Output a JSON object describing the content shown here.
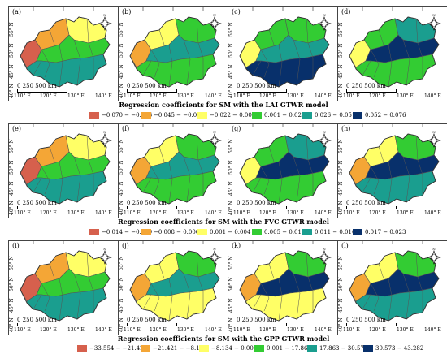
{
  "lon_labels": [
    "110° E",
    "120° E",
    "130° E",
    "140° E"
  ],
  "lat_labels_left": [
    "40° N",
    "45° N",
    "50° N",
    "55° N"
  ],
  "lat_labels_right": [
    "45° N",
    "50° N",
    "55° N"
  ],
  "scale_text": "0   250  500 km",
  "panels": [
    {
      "id": "a",
      "label": "(a)"
    },
    {
      "id": "b",
      "label": "(b)"
    },
    {
      "id": "c",
      "label": "(c)"
    },
    {
      "id": "d",
      "label": "(d)"
    },
    {
      "id": "e",
      "label": "(e)"
    },
    {
      "id": "f",
      "label": "(f)"
    },
    {
      "id": "g",
      "label": "(g)"
    },
    {
      "id": "h",
      "label": "(h)"
    },
    {
      "id": "i",
      "label": "(i)"
    },
    {
      "id": "j",
      "label": "(j)"
    },
    {
      "id": "k",
      "label": "(k)"
    },
    {
      "id": "l",
      "label": "(l)"
    }
  ],
  "sections": [
    {
      "title": "Regression coefficients for SM with the LAI GTWR model",
      "legend": [
        "−0.070 − −0.046",
        "−0.045 − −0.023",
        "−0.022 − 0.000",
        "0.001 − 0.025",
        "0.026 − 0.051",
        "0.052 − 0.076"
      ]
    },
    {
      "title": "Regression coefficients for SM with the FVC GTWR model",
      "legend": [
        "−0.014 − −0.009",
        "−0.008 − 0.000",
        "0.001 − 0.004",
        "0.005 − 0.010",
        "0.011 − 0.016",
        "0.017 − 0.023"
      ]
    },
    {
      "title": "Regression coefficients for SM with the GPP GTWR model",
      "legend": [
        "−33.554 − −21.422",
        "−21.421 − −8.135",
        "−8.134 − 0.000",
        "0.001 − 17.862",
        "17.863 − 30.572",
        "30.573 − 43.282"
      ]
    }
  ],
  "colors": {
    "class1": "#d6604d",
    "class2": "#f4a636",
    "class3": "#ffff66",
    "class4": "#33cc33",
    "class5": "#1a9e8f",
    "class6": "#08306b",
    "outline": "#555555"
  },
  "compass_label": "N"
}
